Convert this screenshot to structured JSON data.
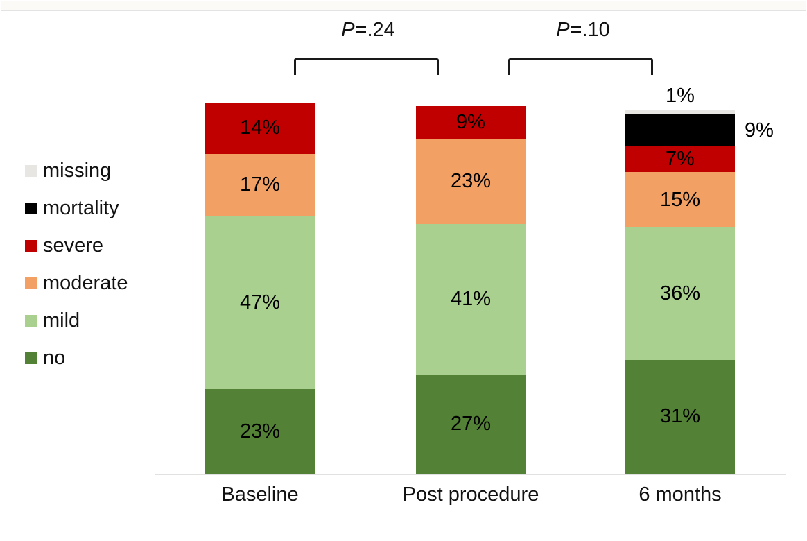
{
  "figure": {
    "background": "#ffffff",
    "top_band_color": "#fbfaf7",
    "divider_color": "#e3e3e3",
    "axis_color": "#e1e1e1",
    "text_color": "#111111"
  },
  "legend": {
    "position": "left",
    "items": [
      {
        "id": "missing",
        "label": "missing",
        "color": "#e8e6e3"
      },
      {
        "id": "mortality",
        "label": "mortality",
        "color": "#000000"
      },
      {
        "id": "severe",
        "label": "severe",
        "color": "#c00000"
      },
      {
        "id": "moderate",
        "label": "moderate",
        "color": "#f2a064"
      },
      {
        "id": "mild",
        "label": "mild",
        "color": "#a9d08e"
      },
      {
        "id": "no",
        "label": "no",
        "color": "#538135"
      }
    ]
  },
  "chart_data": {
    "type": "bar",
    "subtype": "stacked-column",
    "unit": "%",
    "value_suffix": "%",
    "categories": [
      "Baseline",
      "Post procedure",
      "6 months"
    ],
    "stack_order_top_to_bottom": [
      "missing",
      "mortality",
      "severe",
      "moderate",
      "mild",
      "no"
    ],
    "series": [
      {
        "name": "missing",
        "color": "#e8e6e3",
        "values": [
          null,
          null,
          1
        ],
        "label_placement": "above"
      },
      {
        "name": "mortality",
        "color": "#000000",
        "values": [
          null,
          null,
          9
        ],
        "label_placement": "right"
      },
      {
        "name": "severe",
        "color": "#c00000",
        "values": [
          14,
          9,
          7
        ],
        "label_placement": "inside"
      },
      {
        "name": "moderate",
        "color": "#f2a064",
        "values": [
          17,
          23,
          15
        ],
        "label_placement": "inside"
      },
      {
        "name": "mild",
        "color": "#a9d08e",
        "values": [
          47,
          41,
          36
        ],
        "label_placement": "inside"
      },
      {
        "name": "no",
        "color": "#538135",
        "values": [
          23,
          27,
          31
        ],
        "label_placement": "inside"
      }
    ],
    "ylim": [
      0,
      101
    ],
    "gridlines": false,
    "legend_position": "left",
    "annotations": [
      {
        "p_symbol": "P",
        "value": "=.24",
        "between": [
          "Baseline",
          "Post procedure"
        ]
      },
      {
        "p_symbol": "P",
        "value": "=.10",
        "between": [
          "Post procedure",
          "6 months"
        ]
      }
    ]
  }
}
